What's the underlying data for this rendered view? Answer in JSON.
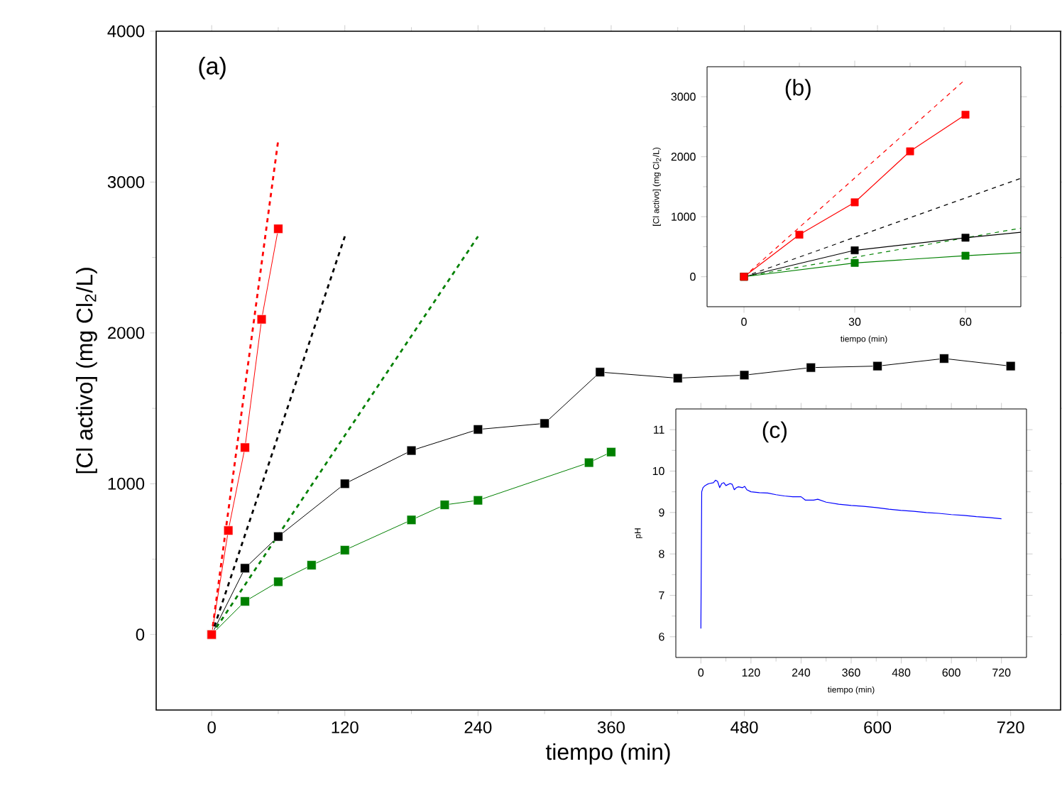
{
  "chart_data": [
    {
      "type": "line",
      "xlabel": "tiempo (min)",
      "ylabel": "[Cl activo] (mg Cl$_{2}$/L)",
      "annotations": [
        "(a)"
      ],
      "xlim": [
        -50,
        765
      ],
      "ylim": [
        -500,
        4000
      ],
      "xticks": [
        0,
        120,
        240,
        360,
        480,
        600,
        720
      ],
      "yticks": [
        0,
        1000,
        2000,
        3000,
        4000
      ],
      "series": [
        {
          "x": [
            0,
            60
          ],
          "values": [
            0,
            3280
          ],
          "color": "#ff0000",
          "line_style": "dashed"
        },
        {
          "x": [
            0,
            120
          ],
          "values": [
            0,
            2640
          ],
          "color": "#000000",
          "line_style": "dashed"
        },
        {
          "x": [
            0,
            240
          ],
          "values": [
            0,
            2640
          ],
          "color": "#008000",
          "line_style": "dashed"
        },
        {
          "x": [
            0,
            30,
            60,
            120,
            180,
            240,
            300,
            350,
            420,
            480,
            540,
            600,
            660,
            720
          ],
          "values": [
            0,
            440,
            650,
            1000,
            1220,
            1360,
            1400,
            1740,
            1700,
            1720,
            1770,
            1780,
            1830,
            1780
          ],
          "color": "#000000",
          "line_style": "solid",
          "marker": "square"
        },
        {
          "x": [
            0,
            30,
            60,
            90,
            120,
            180,
            210,
            240,
            340,
            360
          ],
          "values": [
            0,
            220,
            350,
            460,
            560,
            760,
            860,
            890,
            1140,
            1210
          ],
          "color": "#008000",
          "line_style": "solid",
          "marker": "square"
        },
        {
          "x": [
            0,
            15,
            30,
            45,
            60
          ],
          "values": [
            0,
            690,
            1240,
            2090,
            2690
          ],
          "color": "#ff0000",
          "line_style": "solid",
          "marker": "square"
        }
      ]
    },
    {
      "type": "line",
      "xlabel": "tiempo (min)",
      "ylabel": "[Cl activo] (mg Cl$_{2}$/L)",
      "annotations": [
        "(b)"
      ],
      "xlim": [
        -10,
        75
      ],
      "ylim": [
        -500,
        3500
      ],
      "xticks": [
        0,
        30,
        60
      ],
      "yticks": [
        0,
        1000,
        2000,
        3000
      ],
      "series": [
        {
          "x": [
            0,
            60
          ],
          "values": [
            0,
            3290
          ],
          "color": "#ff0000",
          "line_style": "dashed"
        },
        {
          "x": [
            0,
            75
          ],
          "values": [
            0,
            1640
          ],
          "color": "#000000",
          "line_style": "dashed"
        },
        {
          "x": [
            0,
            75
          ],
          "values": [
            0,
            810
          ],
          "color": "#008000",
          "line_style": "dashed"
        },
        {
          "x": [
            0,
            30,
            60
          ],
          "values": [
            0,
            440,
            650
          ],
          "color": "#000000",
          "line_style": "solid",
          "marker": "square"
        },
        {
          "x": [
            0,
            30,
            60
          ],
          "values": [
            0,
            230,
            350
          ],
          "color": "#008000",
          "line_style": "solid",
          "marker": "square"
        },
        {
          "x": [
            60,
            75
          ],
          "values": [
            650,
            740
          ],
          "color": "#000000",
          "line_style": "solid"
        },
        {
          "x": [
            60,
            75
          ],
          "values": [
            350,
            400
          ],
          "color": "#008000",
          "line_style": "solid"
        },
        {
          "x": [
            0,
            15,
            30,
            45,
            60
          ],
          "values": [
            0,
            700,
            1240,
            2090,
            2700
          ],
          "color": "#ff0000",
          "line_style": "solid",
          "marker": "square"
        }
      ]
    },
    {
      "type": "line",
      "xlabel": "tiempo (min)",
      "ylabel": "pH",
      "annotations": [
        "(c)"
      ],
      "xlim": [
        -60,
        780
      ],
      "ylim": [
        5.5,
        11.5
      ],
      "xticks": [
        0,
        120,
        240,
        360,
        480,
        600,
        720
      ],
      "yticks": [
        6,
        7,
        8,
        9,
        10,
        11
      ],
      "series": [
        {
          "x": [
            0,
            2,
            5,
            10,
            15,
            20,
            30,
            35,
            40,
            45,
            50,
            55,
            60,
            70,
            75,
            80,
            85,
            90,
            100,
            105,
            110,
            120,
            140,
            160,
            180,
            200,
            220,
            240,
            250,
            270,
            280,
            300,
            330,
            360,
            390,
            420,
            450,
            480,
            510,
            540,
            570,
            600,
            630,
            660,
            690,
            720
          ],
          "values": [
            6.2,
            9.5,
            9.6,
            9.65,
            9.68,
            9.7,
            9.72,
            9.78,
            9.75,
            9.6,
            9.7,
            9.72,
            9.65,
            9.7,
            9.68,
            9.55,
            9.6,
            9.62,
            9.6,
            9.63,
            9.55,
            9.5,
            9.48,
            9.47,
            9.43,
            9.4,
            9.38,
            9.38,
            9.3,
            9.3,
            9.32,
            9.25,
            9.2,
            9.17,
            9.15,
            9.12,
            9.08,
            9.05,
            9.03,
            9.0,
            8.98,
            8.95,
            8.93,
            8.9,
            8.88,
            8.85
          ],
          "color": "#0000ff",
          "line_style": "solid"
        }
      ]
    }
  ]
}
